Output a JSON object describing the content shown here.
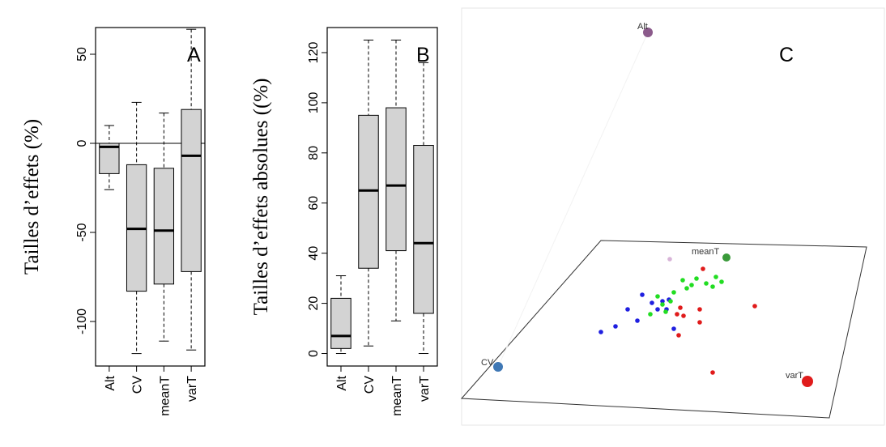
{
  "chart_data": [
    {
      "type": "boxplot",
      "panel": "A",
      "ylabel": "Tailles d’effets (%)",
      "ylim": [
        -125,
        65
      ],
      "yticks": [
        50,
        0,
        -50,
        -100
      ],
      "reference_line": 0,
      "categories": [
        "Alt",
        "CV",
        "meanT",
        "varT"
      ],
      "boxes": [
        {
          "name": "Alt",
          "whisker_low": -26,
          "q1": -17,
          "median": -2,
          "q3": 0,
          "whisker_high": 10
        },
        {
          "name": "CV",
          "whisker_low": -118,
          "q1": -83,
          "median": -48,
          "q3": -12,
          "whisker_high": 23
        },
        {
          "name": "meanT",
          "whisker_low": -111,
          "q1": -79,
          "median": -49,
          "q3": -14,
          "whisker_high": 17
        },
        {
          "name": "varT",
          "whisker_low": -116,
          "q1": -72,
          "median": -7,
          "q3": 19,
          "whisker_high": 64
        }
      ]
    },
    {
      "type": "boxplot",
      "panel": "B",
      "ylabel": "Tailles d’effets absolues ((%)",
      "ylim": [
        -5,
        130
      ],
      "yticks": [
        0,
        20,
        40,
        60,
        80,
        100,
        120
      ],
      "categories": [
        "Alt",
        "CV",
        "meanT",
        "varT"
      ],
      "boxes": [
        {
          "name": "Alt",
          "whisker_low": 0,
          "q1": 2,
          "median": 7,
          "q3": 22,
          "whisker_high": 31
        },
        {
          "name": "CV",
          "whisker_low": 3,
          "q1": 34,
          "median": 65,
          "q3": 95,
          "whisker_high": 125
        },
        {
          "name": "meanT",
          "whisker_low": 13,
          "q1": 41,
          "median": 67,
          "q3": 98,
          "whisker_high": 125
        },
        {
          "name": "varT",
          "whisker_low": 0,
          "q1": 16,
          "median": 44,
          "q3": 83,
          "whisker_high": 116
        }
      ]
    },
    {
      "type": "scatter",
      "panel": "C",
      "description_points": "3D ternary-style projection",
      "anchors": [
        {
          "label": "Alt",
          "color": "#8b5a8b"
        },
        {
          "label": "meanT",
          "color": "#3a9a3a"
        },
        {
          "label": "CV",
          "color": "#3f78b5"
        },
        {
          "label": "varT",
          "color": "#e01b1b"
        }
      ],
      "series": [
        {
          "color": "#1f1fe0",
          "points": [
            [
              742,
              410
            ],
            [
              760,
              403
            ],
            [
              775,
              382
            ],
            [
              787,
              396
            ],
            [
              793,
              364
            ],
            [
              805,
              374
            ],
            [
              812,
              382
            ],
            [
              818,
              372
            ],
            [
              823,
              382
            ],
            [
              826,
              370
            ],
            [
              832,
              406
            ]
          ]
        },
        {
          "color": "#22dd22",
          "points": [
            [
              803,
              388
            ],
            [
              812,
              366
            ],
            [
              818,
              376
            ],
            [
              822,
              385
            ],
            [
              828,
              372
            ],
            [
              832,
              361
            ],
            [
              843,
              346
            ],
            [
              848,
              356
            ],
            [
              854,
              352
            ],
            [
              860,
              344
            ],
            [
              872,
              350
            ],
            [
              880,
              354
            ],
            [
              891,
              348
            ],
            [
              884,
              342
            ]
          ]
        },
        {
          "color": "#e01b1b",
          "points": [
            [
              836,
              388
            ],
            [
              840,
              380
            ],
            [
              844,
              390
            ],
            [
              838,
              414
            ],
            [
              864,
              382
            ],
            [
              864,
              398
            ],
            [
              868,
              332
            ],
            [
              880,
              460
            ],
            [
              932,
              378
            ]
          ]
        },
        {
          "color": "#d8b4d8",
          "points": [
            [
              827,
              320
            ]
          ]
        }
      ]
    }
  ],
  "panels": {
    "a_letter": "A",
    "b_letter": "B",
    "c_letter": "C"
  },
  "colors": {
    "box_fill": "#d3d3d3",
    "alt": "#8b5a8b",
    "meanT": "#3a9a3a",
    "cv": "#3f78b5",
    "varT": "#e01b1b",
    "blue_points": "#1f1fe0",
    "green_points": "#22dd22",
    "red_points": "#e01b1b"
  }
}
